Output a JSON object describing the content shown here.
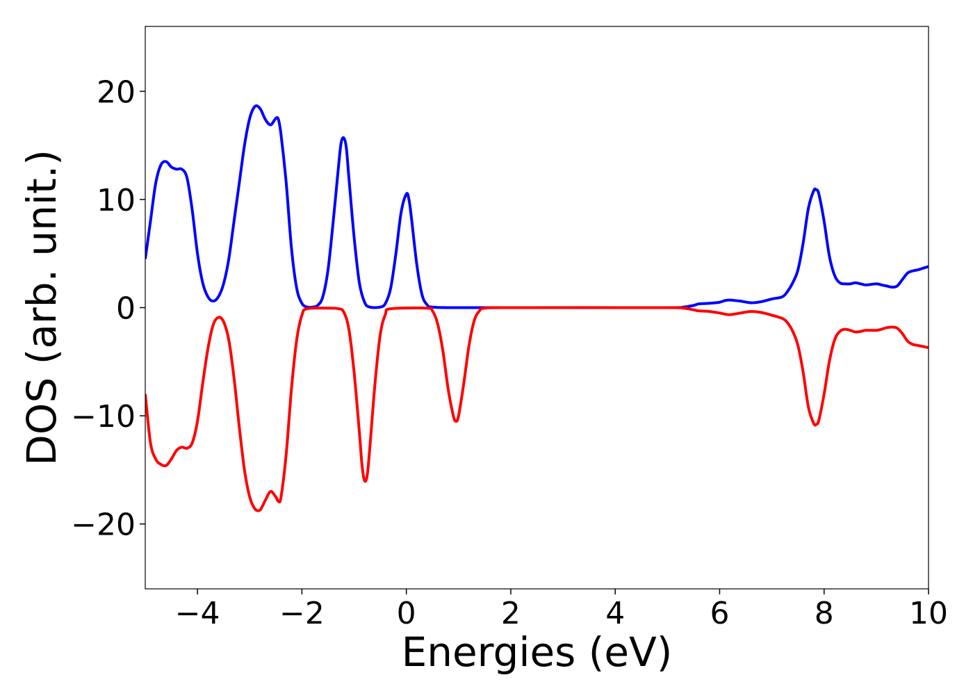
{
  "chart_data": {
    "type": "line",
    "title": "",
    "xlabel": "Energies (eV)",
    "ylabel": "DOS (arb. unit.)",
    "xlim": [
      -5,
      10
    ],
    "ylim": [
      -26,
      26
    ],
    "grid": false,
    "x_ticks": [
      -4,
      -2,
      0,
      2,
      4,
      6,
      8,
      10
    ],
    "x_tick_labels": [
      "−4",
      "−2",
      "0",
      "2",
      "4",
      "6",
      "8",
      "10"
    ],
    "y_ticks": [
      -20,
      -10,
      0,
      10,
      20
    ],
    "y_tick_labels": [
      "−20",
      "−10",
      "0",
      "10",
      "20"
    ],
    "series": [
      {
        "color": "#0000ff",
        "points": [
          [
            -5.0,
            4.5
          ],
          [
            -4.9,
            8.0
          ],
          [
            -4.8,
            11.5
          ],
          [
            -4.7,
            13.2
          ],
          [
            -4.6,
            13.5
          ],
          [
            -4.5,
            13.0
          ],
          [
            -4.4,
            12.8
          ],
          [
            -4.3,
            12.8
          ],
          [
            -4.2,
            12.0
          ],
          [
            -4.1,
            9.0
          ],
          [
            -4.0,
            5.0
          ],
          [
            -3.9,
            2.3
          ],
          [
            -3.8,
            1.0
          ],
          [
            -3.7,
            0.6
          ],
          [
            -3.6,
            1.0
          ],
          [
            -3.5,
            2.2
          ],
          [
            -3.4,
            4.5
          ],
          [
            -3.3,
            8.0
          ],
          [
            -3.2,
            11.5
          ],
          [
            -3.1,
            15.0
          ],
          [
            -3.0,
            17.5
          ],
          [
            -2.9,
            18.6
          ],
          [
            -2.8,
            18.4
          ],
          [
            -2.7,
            17.4
          ],
          [
            -2.6,
            16.9
          ],
          [
            -2.5,
            17.5
          ],
          [
            -2.45,
            17.4
          ],
          [
            -2.4,
            16.0
          ],
          [
            -2.3,
            11.5
          ],
          [
            -2.2,
            5.5
          ],
          [
            -2.1,
            1.8
          ],
          [
            -2.0,
            0.4
          ],
          [
            -1.9,
            0.05
          ],
          [
            -1.8,
            0.05
          ],
          [
            -1.7,
            0.2
          ],
          [
            -1.6,
            1.0
          ],
          [
            -1.5,
            3.5
          ],
          [
            -1.4,
            8.0
          ],
          [
            -1.3,
            13.0
          ],
          [
            -1.25,
            15.2
          ],
          [
            -1.2,
            15.7
          ],
          [
            -1.15,
            14.8
          ],
          [
            -1.1,
            12.0
          ],
          [
            -1.0,
            6.5
          ],
          [
            -0.9,
            2.3
          ],
          [
            -0.8,
            0.5
          ],
          [
            -0.7,
            0.05
          ],
          [
            -0.5,
            0.05
          ],
          [
            -0.4,
            0.4
          ],
          [
            -0.3,
            1.8
          ],
          [
            -0.2,
            5.0
          ],
          [
            -0.1,
            8.8
          ],
          [
            0.0,
            10.5
          ],
          [
            0.05,
            10.0
          ],
          [
            0.1,
            8.2
          ],
          [
            0.2,
            4.0
          ],
          [
            0.3,
            1.2
          ],
          [
            0.4,
            0.25
          ],
          [
            0.5,
            0.05
          ],
          [
            1.0,
            0.0
          ],
          [
            3.0,
            0.0
          ],
          [
            5.0,
            0.0
          ],
          [
            5.3,
            0.05
          ],
          [
            5.5,
            0.2
          ],
          [
            5.6,
            0.35
          ],
          [
            5.8,
            0.4
          ],
          [
            6.0,
            0.5
          ],
          [
            6.1,
            0.65
          ],
          [
            6.2,
            0.7
          ],
          [
            6.4,
            0.6
          ],
          [
            6.6,
            0.45
          ],
          [
            6.8,
            0.55
          ],
          [
            7.0,
            0.8
          ],
          [
            7.2,
            1.0
          ],
          [
            7.3,
            1.5
          ],
          [
            7.4,
            2.3
          ],
          [
            7.5,
            3.5
          ],
          [
            7.6,
            6.0
          ],
          [
            7.7,
            9.2
          ],
          [
            7.8,
            10.8
          ],
          [
            7.85,
            10.9
          ],
          [
            7.9,
            10.5
          ],
          [
            8.0,
            8.0
          ],
          [
            8.1,
            4.8
          ],
          [
            8.2,
            3.0
          ],
          [
            8.3,
            2.3
          ],
          [
            8.4,
            2.2
          ],
          [
            8.5,
            2.2
          ],
          [
            8.6,
            2.3
          ],
          [
            8.7,
            2.2
          ],
          [
            8.8,
            2.1
          ],
          [
            9.0,
            2.2
          ],
          [
            9.1,
            2.1
          ],
          [
            9.2,
            2.0
          ],
          [
            9.3,
            1.9
          ],
          [
            9.4,
            2.0
          ],
          [
            9.5,
            2.6
          ],
          [
            9.6,
            3.2
          ],
          [
            9.7,
            3.4
          ],
          [
            9.8,
            3.5
          ],
          [
            9.9,
            3.65
          ],
          [
            10.0,
            3.8
          ]
        ]
      },
      {
        "color": "#ff0000",
        "points": [
          [
            -5.0,
            -8.0
          ],
          [
            -4.9,
            -12.5
          ],
          [
            -4.8,
            -14.0
          ],
          [
            -4.7,
            -14.5
          ],
          [
            -4.6,
            -14.6
          ],
          [
            -4.5,
            -14.0
          ],
          [
            -4.4,
            -13.2
          ],
          [
            -4.3,
            -12.9
          ],
          [
            -4.2,
            -13.0
          ],
          [
            -4.1,
            -12.5
          ],
          [
            -4.0,
            -10.5
          ],
          [
            -3.9,
            -7.0
          ],
          [
            -3.8,
            -3.8
          ],
          [
            -3.7,
            -1.6
          ],
          [
            -3.6,
            -0.9
          ],
          [
            -3.5,
            -1.3
          ],
          [
            -3.4,
            -3.0
          ],
          [
            -3.3,
            -6.5
          ],
          [
            -3.2,
            -11.0
          ],
          [
            -3.1,
            -15.0
          ],
          [
            -3.0,
            -17.5
          ],
          [
            -2.9,
            -18.6
          ],
          [
            -2.8,
            -18.7
          ],
          [
            -2.7,
            -17.8
          ],
          [
            -2.6,
            -17.0
          ],
          [
            -2.5,
            -17.5
          ],
          [
            -2.45,
            -17.9
          ],
          [
            -2.4,
            -17.5
          ],
          [
            -2.3,
            -13.5
          ],
          [
            -2.2,
            -7.5
          ],
          [
            -2.1,
            -3.0
          ],
          [
            -2.0,
            -0.7
          ],
          [
            -1.9,
            -0.1
          ],
          [
            -1.5,
            -0.05
          ],
          [
            -1.3,
            -0.1
          ],
          [
            -1.2,
            -0.4
          ],
          [
            -1.1,
            -2.0
          ],
          [
            -1.0,
            -6.0
          ],
          [
            -0.9,
            -11.5
          ],
          [
            -0.85,
            -14.5
          ],
          [
            -0.8,
            -16.0
          ],
          [
            -0.75,
            -15.5
          ],
          [
            -0.7,
            -13.0
          ],
          [
            -0.6,
            -7.0
          ],
          [
            -0.5,
            -2.5
          ],
          [
            -0.4,
            -0.6
          ],
          [
            -0.3,
            -0.1
          ],
          [
            0.4,
            -0.05
          ],
          [
            0.5,
            -0.3
          ],
          [
            0.6,
            -1.5
          ],
          [
            0.7,
            -4.0
          ],
          [
            0.8,
            -7.5
          ],
          [
            0.9,
            -10.0
          ],
          [
            0.95,
            -10.5
          ],
          [
            1.0,
            -10.0
          ],
          [
            1.1,
            -7.0
          ],
          [
            1.2,
            -3.5
          ],
          [
            1.3,
            -1.2
          ],
          [
            1.4,
            -0.3
          ],
          [
            1.5,
            -0.05
          ],
          [
            2.0,
            0.0
          ],
          [
            5.0,
            0.0
          ],
          [
            5.3,
            -0.05
          ],
          [
            5.5,
            -0.2
          ],
          [
            5.6,
            -0.3
          ],
          [
            5.8,
            -0.35
          ],
          [
            6.0,
            -0.5
          ],
          [
            6.1,
            -0.6
          ],
          [
            6.2,
            -0.65
          ],
          [
            6.4,
            -0.5
          ],
          [
            6.6,
            -0.35
          ],
          [
            6.8,
            -0.45
          ],
          [
            7.0,
            -0.7
          ],
          [
            7.2,
            -1.0
          ],
          [
            7.3,
            -1.4
          ],
          [
            7.4,
            -2.2
          ],
          [
            7.5,
            -3.5
          ],
          [
            7.6,
            -6.0
          ],
          [
            7.7,
            -9.2
          ],
          [
            7.8,
            -10.7
          ],
          [
            7.85,
            -10.8
          ],
          [
            7.9,
            -10.4
          ],
          [
            8.0,
            -8.0
          ],
          [
            8.1,
            -5.0
          ],
          [
            8.2,
            -3.0
          ],
          [
            8.3,
            -2.2
          ],
          [
            8.4,
            -2.0
          ],
          [
            8.5,
            -2.1
          ],
          [
            8.6,
            -2.25
          ],
          [
            8.7,
            -2.2
          ],
          [
            8.8,
            -2.1
          ],
          [
            9.0,
            -2.1
          ],
          [
            9.1,
            -2.0
          ],
          [
            9.2,
            -1.85
          ],
          [
            9.3,
            -1.8
          ],
          [
            9.4,
            -1.9
          ],
          [
            9.5,
            -2.4
          ],
          [
            9.6,
            -3.1
          ],
          [
            9.7,
            -3.4
          ],
          [
            9.8,
            -3.5
          ],
          [
            9.9,
            -3.6
          ],
          [
            10.0,
            -3.7
          ]
        ]
      }
    ]
  }
}
